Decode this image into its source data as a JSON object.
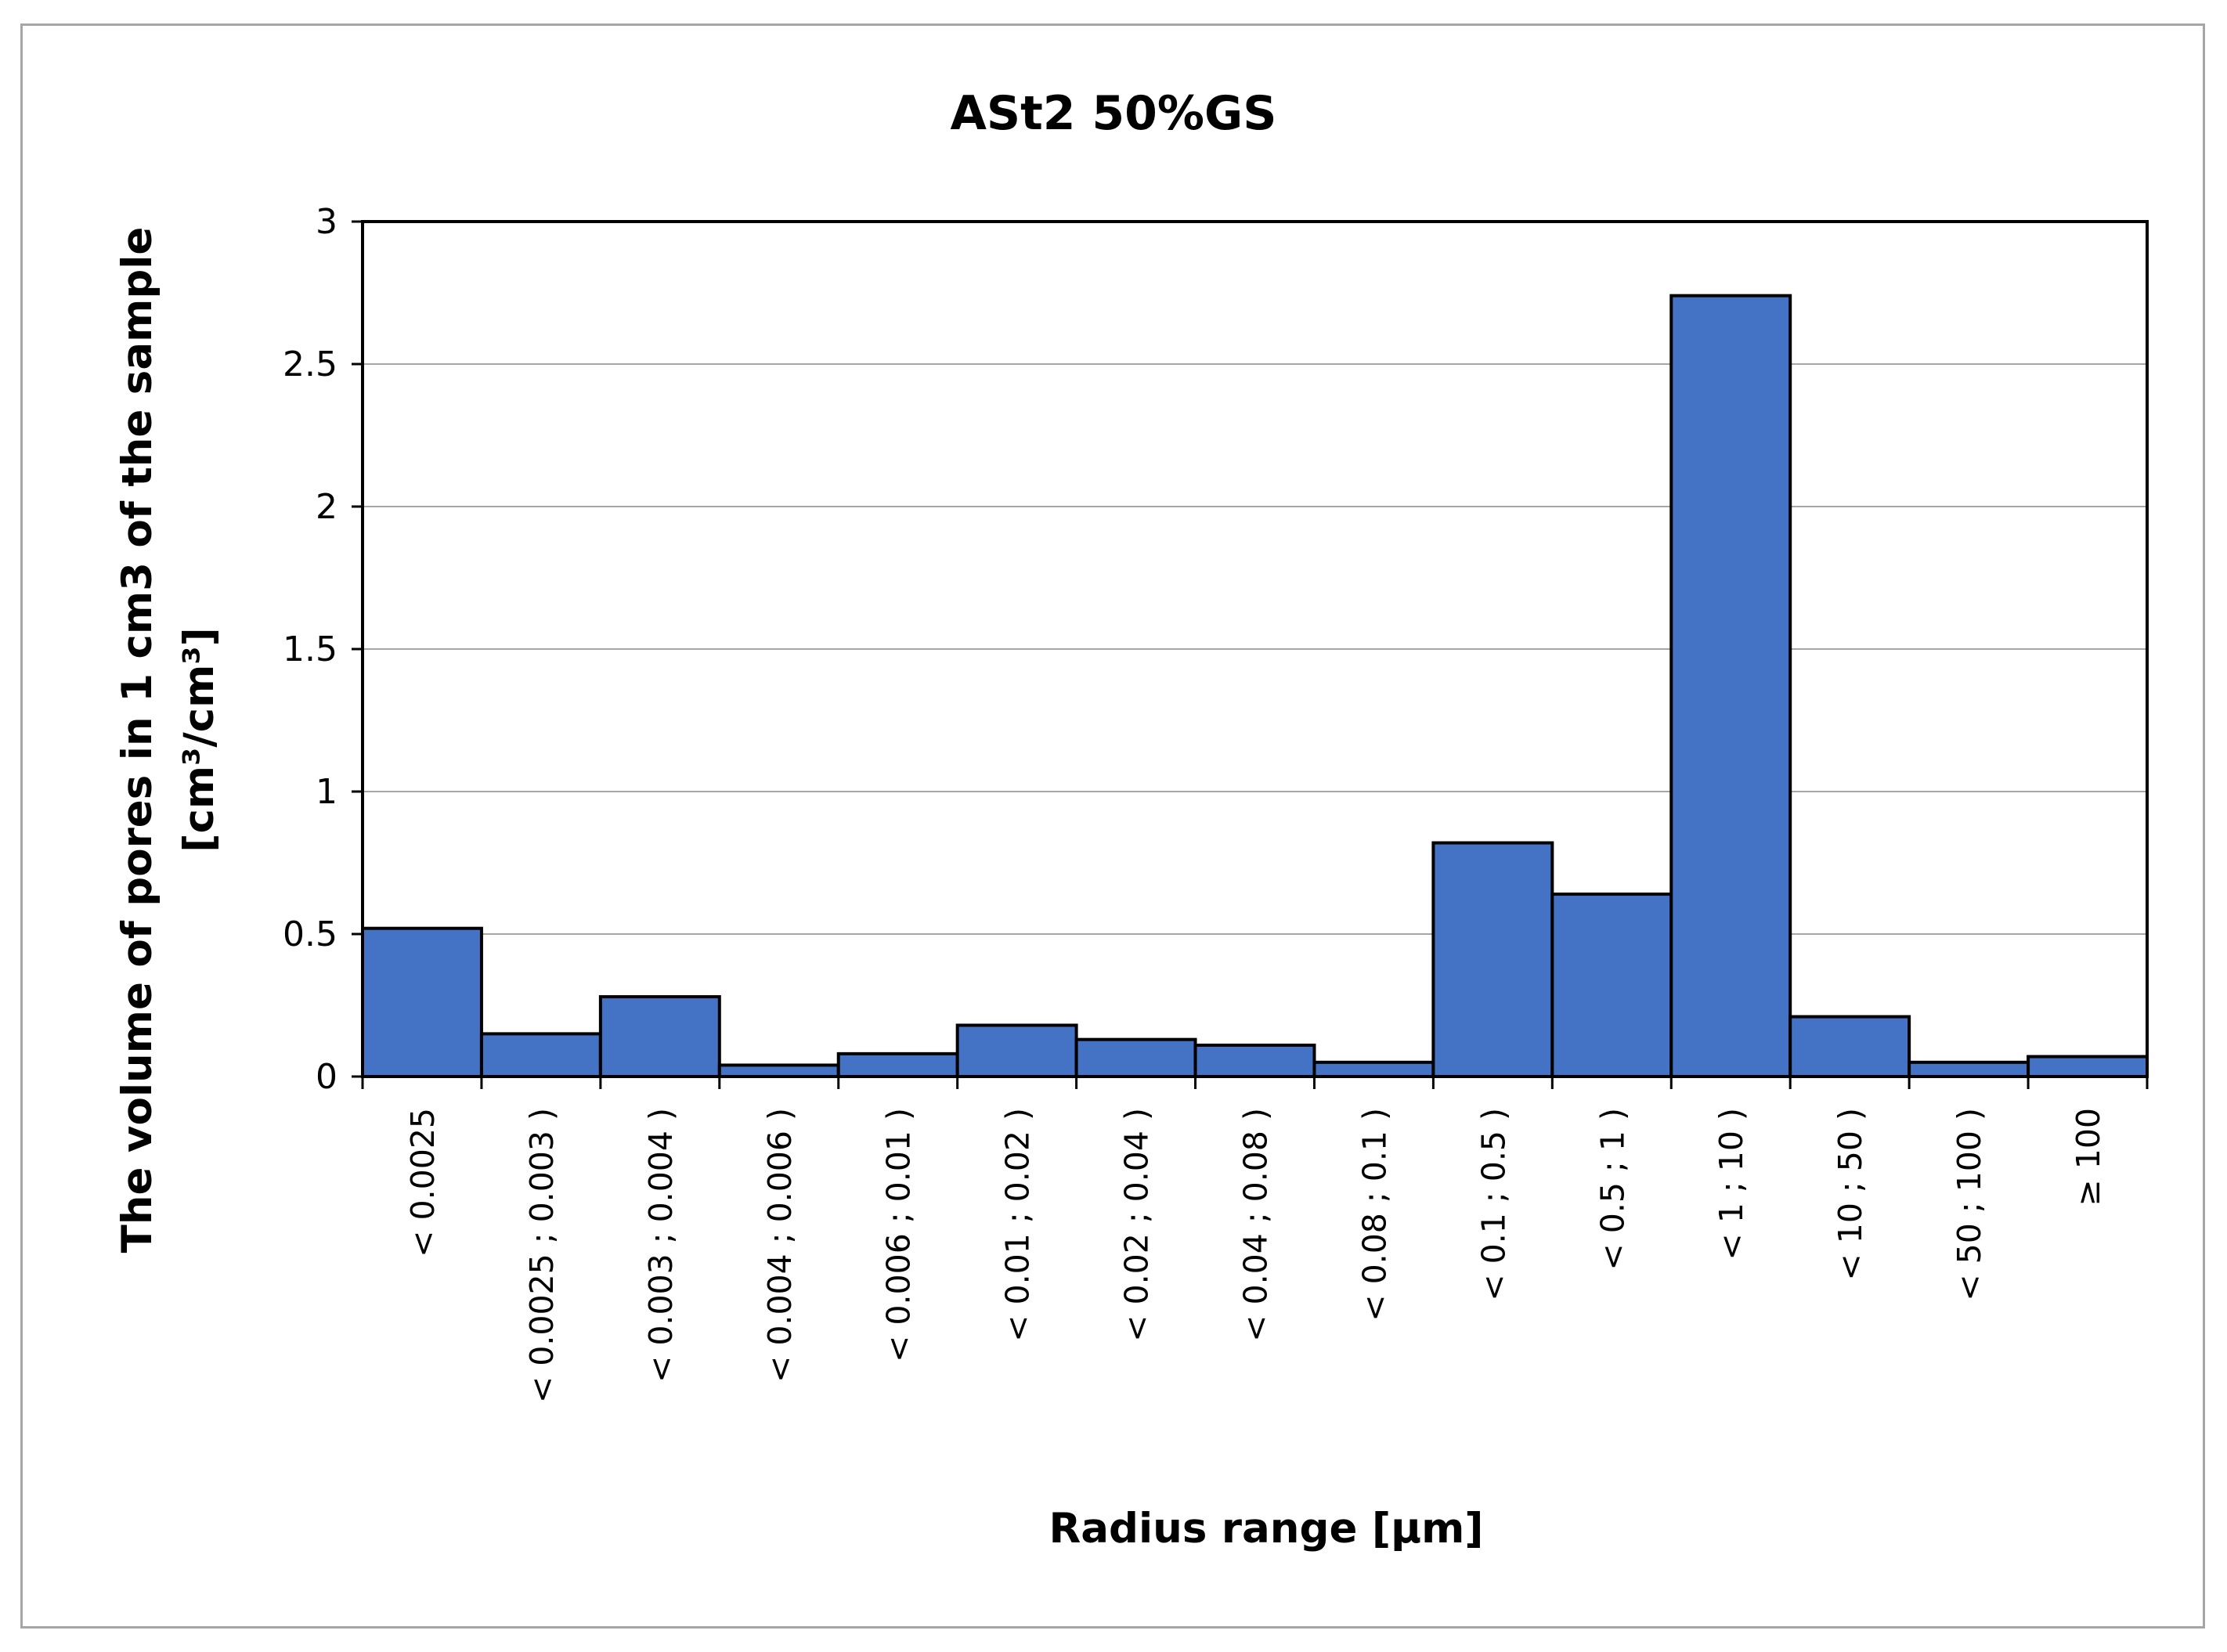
{
  "chart_data": {
    "type": "bar",
    "title": "ASt2 50%GS",
    "xlabel": "Radius range [μm]",
    "ylabel_line1": "The volume of pores in 1 cm3 of the sample",
    "ylabel_line2": "[cm³/cm³]",
    "ylim": [
      0,
      3
    ],
    "yticks": [
      "0",
      "0.5",
      "1",
      "1.5",
      "2",
      "2.5",
      "3"
    ],
    "ytick_values": [
      0,
      0.5,
      1,
      1.5,
      2,
      2.5,
      3
    ],
    "grid": true,
    "legend": false,
    "categories": [
      "< 0.0025",
      "< 0.0025 ; 0.003 )",
      "< 0.003 ; 0.004 )",
      "< 0.004 ; 0.006 )",
      "< 0.006 ; 0.01 )",
      "< 0.01 ; 0.02 )",
      "< 0.02 ; 0.04 )",
      "< 0.04 ; 0.08 )",
      "< 0.08 ; 0.1 )",
      "< 0.1 ; 0.5 )",
      "< 0.5 ; 1 )",
      "< 1 ; 10 )",
      "< 10 ; 50 )",
      "< 50 ; 100 )",
      "≥ 100"
    ],
    "values": [
      0.52,
      0.15,
      0.28,
      0.04,
      0.08,
      0.18,
      0.13,
      0.11,
      0.05,
      0.82,
      0.64,
      2.74,
      0.21,
      0.05,
      0.07
    ],
    "colors": {
      "bar_fill": "#4472c4",
      "bar_stroke": "#000000",
      "grid": "#a6a6a6",
      "frame": "#a6a6a6"
    }
  }
}
